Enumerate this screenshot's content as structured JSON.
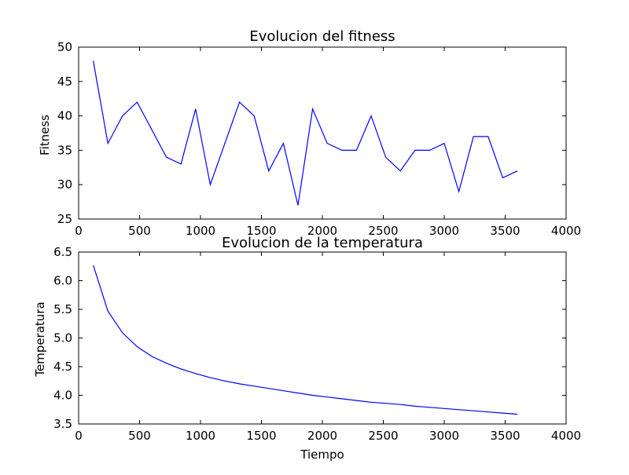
{
  "chart_data": [
    {
      "type": "line",
      "title": "Evolucion del fitness",
      "xlabel": "",
      "ylabel": "Fitness",
      "xlim": [
        0,
        4000
      ],
      "ylim": [
        25,
        50
      ],
      "xticks": [
        0,
        500,
        1000,
        1500,
        2000,
        2500,
        3000,
        3500,
        4000
      ],
      "yticks": [
        25,
        30,
        35,
        40,
        45,
        50
      ],
      "xtick_labels": [
        "0",
        "500",
        "1000",
        "1500",
        "2000",
        "2500",
        "3000",
        "3500",
        "4000"
      ],
      "ytick_labels": [
        "25",
        "30",
        "35",
        "40",
        "45",
        "50"
      ],
      "grid": false,
      "color": "#0000ff",
      "series": [
        {
          "x": [
            120,
            240,
            360,
            480,
            600,
            720,
            840,
            960,
            1080,
            1200,
            1320,
            1440,
            1560,
            1680,
            1800,
            1920,
            2040,
            2160,
            2280,
            2400,
            2520,
            2640,
            2760,
            2880,
            3000,
            3120,
            3240,
            3360,
            3480,
            3600
          ],
          "y": [
            48,
            36,
            40,
            42,
            38,
            34,
            33,
            41,
            30,
            36,
            42,
            40,
            32,
            36,
            27,
            41,
            36,
            35,
            35,
            40,
            34,
            32,
            35,
            35,
            36,
            29,
            37,
            37,
            31,
            32
          ]
        }
      ]
    },
    {
      "type": "line",
      "title": "Evolucion de la temperatura",
      "xlabel": "Tiempo",
      "ylabel": "Temperatura",
      "xlim": [
        0,
        4000
      ],
      "ylim": [
        3.5,
        6.5
      ],
      "xticks": [
        0,
        500,
        1000,
        1500,
        2000,
        2500,
        3000,
        3500,
        4000
      ],
      "yticks": [
        3.5,
        4.0,
        4.5,
        5.0,
        5.5,
        6.0,
        6.5
      ],
      "xtick_labels": [
        "0",
        "500",
        "1000",
        "1500",
        "2000",
        "2500",
        "3000",
        "3500",
        "4000"
      ],
      "ytick_labels": [
        "3.5",
        "4.0",
        "4.5",
        "5.0",
        "5.5",
        "6.0",
        "6.5"
      ],
      "grid": false,
      "color": "#0000ff",
      "series": [
        {
          "x": [
            120,
            240,
            360,
            480,
            600,
            720,
            840,
            960,
            1080,
            1200,
            1320,
            1440,
            1560,
            1680,
            1800,
            1920,
            2040,
            2160,
            2280,
            2400,
            2520,
            2640,
            2760,
            2880,
            3000,
            3120,
            3240,
            3360,
            3480,
            3600
          ],
          "y": [
            6.27,
            5.47,
            5.09,
            4.85,
            4.68,
            4.56,
            4.46,
            4.38,
            4.31,
            4.25,
            4.2,
            4.16,
            4.12,
            4.08,
            4.04,
            4.0,
            3.97,
            3.94,
            3.91,
            3.88,
            3.86,
            3.84,
            3.81,
            3.79,
            3.77,
            3.75,
            3.73,
            3.71,
            3.69,
            3.67
          ]
        }
      ]
    }
  ]
}
